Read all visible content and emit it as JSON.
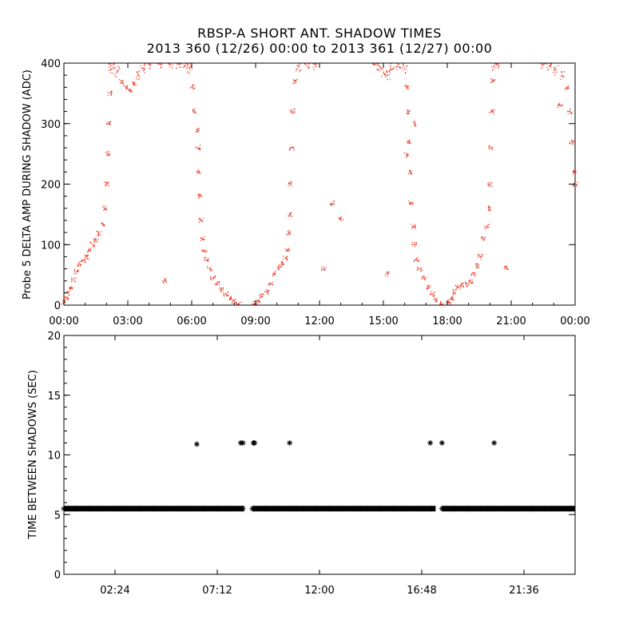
{
  "header": {
    "title": "RBSP-A SHORT ANT. SHADOW TIMES",
    "subtitle": "2013 360 (12/26) 00:00 to 2013 361 (12/27) 00:00"
  },
  "chart_data": [
    {
      "type": "scatter",
      "title": "RBSP-A SHORT ANT. SHADOW TIMES",
      "subtitle": "2013 360 (12/26) 00:00 to 2013 361 (12/27) 00:00",
      "xlabel": "",
      "ylabel": "Probe 5 DELTA AMP DURING SHADOW (ADC)",
      "xlim": [
        "00:00",
        "24:00"
      ],
      "ylim": [
        0,
        400
      ],
      "xticks": [
        "00:00",
        "03:00",
        "06:00",
        "09:00",
        "12:00",
        "15:00",
        "18:00",
        "21:00",
        "00:00"
      ],
      "yticks": [
        "0",
        "100",
        "200",
        "300",
        "400"
      ],
      "marker": "dot",
      "color": "#e8321e",
      "series": [
        {
          "values": [
            [
              0.0,
              5
            ],
            [
              0.1,
              12
            ],
            [
              0.2,
              20
            ],
            [
              0.3,
              28
            ],
            [
              0.45,
              42
            ],
            [
              0.6,
              55
            ],
            [
              0.75,
              68
            ],
            [
              0.9,
              74
            ],
            [
              1.05,
              80
            ],
            [
              1.2,
              90
            ],
            [
              1.35,
              100
            ],
            [
              1.5,
              108
            ],
            [
              1.65,
              118
            ],
            [
              1.8,
              135
            ],
            [
              1.9,
              160
            ],
            [
              2.0,
              200
            ],
            [
              2.05,
              250
            ],
            [
              2.1,
              300
            ],
            [
              2.15,
              350
            ],
            [
              2.2,
              390
            ],
            [
              2.3,
              400
            ],
            [
              2.5,
              385
            ],
            [
              2.7,
              370
            ],
            [
              2.9,
              360
            ],
            [
              3.1,
              355
            ],
            [
              3.3,
              365
            ],
            [
              3.5,
              380
            ],
            [
              3.7,
              392
            ],
            [
              4.0,
              400
            ],
            [
              4.5,
              400
            ],
            [
              5.0,
              400
            ],
            [
              5.4,
              398
            ],
            [
              5.7,
              395
            ],
            [
              5.9,
              392
            ],
            [
              6.05,
              360
            ],
            [
              6.15,
              320
            ],
            [
              6.25,
              290
            ],
            [
              6.3,
              260
            ],
            [
              6.35,
              220
            ],
            [
              6.4,
              180
            ],
            [
              6.45,
              140
            ],
            [
              6.5,
              110
            ],
            [
              6.6,
              90
            ],
            [
              6.7,
              75
            ],
            [
              6.85,
              60
            ],
            [
              7.0,
              45
            ],
            [
              7.2,
              35
            ],
            [
              7.4,
              25
            ],
            [
              7.6,
              18
            ],
            [
              7.8,
              12
            ],
            [
              8.0,
              6
            ],
            [
              8.2,
              2
            ],
            [
              8.95,
              2
            ],
            [
              9.1,
              8
            ],
            [
              9.3,
              15
            ],
            [
              9.5,
              22
            ],
            [
              9.7,
              35
            ],
            [
              9.9,
              52
            ],
            [
              10.1,
              62
            ],
            [
              10.25,
              70
            ],
            [
              10.4,
              78
            ],
            [
              10.5,
              90
            ],
            [
              10.55,
              120
            ],
            [
              10.6,
              150
            ],
            [
              10.65,
              200
            ],
            [
              10.7,
              260
            ],
            [
              10.75,
              320
            ],
            [
              10.85,
              370
            ],
            [
              11.0,
              395
            ],
            [
              11.4,
              400
            ],
            [
              11.8,
              398
            ],
            [
              14.6,
              400
            ],
            [
              14.8,
              395
            ],
            [
              15.0,
              385
            ],
            [
              15.2,
              380
            ],
            [
              15.4,
              390
            ],
            [
              15.7,
              398
            ],
            [
              16.0,
              392
            ],
            [
              16.1,
              360
            ],
            [
              16.15,
              320
            ],
            [
              16.2,
              270
            ],
            [
              16.25,
              220
            ],
            [
              16.3,
              170
            ],
            [
              16.4,
              130
            ],
            [
              16.45,
              100
            ],
            [
              16.55,
              75
            ],
            [
              16.7,
              60
            ],
            [
              16.9,
              45
            ],
            [
              17.1,
              30
            ],
            [
              17.3,
              18
            ],
            [
              17.5,
              8
            ],
            [
              17.7,
              2
            ],
            [
              18.05,
              5
            ],
            [
              18.2,
              12
            ],
            [
              18.35,
              22
            ],
            [
              18.5,
              30
            ],
            [
              18.7,
              33
            ],
            [
              18.9,
              35
            ],
            [
              19.1,
              38
            ],
            [
              19.25,
              50
            ],
            [
              19.4,
              65
            ],
            [
              19.55,
              80
            ],
            [
              19.7,
              110
            ],
            [
              19.85,
              130
            ],
            [
              19.95,
              160
            ],
            [
              20.0,
              200
            ],
            [
              20.05,
              260
            ],
            [
              20.1,
              320
            ],
            [
              20.15,
              370
            ],
            [
              20.2,
              395
            ],
            [
              20.4,
              400
            ],
            [
              22.5,
              400
            ],
            [
              22.8,
              395
            ],
            [
              23.1,
              390
            ],
            [
              23.4,
              380
            ],
            [
              23.6,
              360
            ],
            [
              23.75,
              320
            ],
            [
              23.85,
              270
            ],
            [
              23.95,
              220
            ],
            [
              24.0,
              200
            ],
            [
              4.7,
              40
            ],
            [
              12.6,
              168
            ],
            [
              13.0,
              142
            ],
            [
              15.2,
              52
            ],
            [
              16.1,
              248
            ],
            [
              16.5,
              300
            ],
            [
              20.8,
              62
            ],
            [
              23.3,
              330
            ],
            [
              12.2,
              60
            ]
          ]
        }
      ]
    },
    {
      "type": "scatter",
      "title": "",
      "xlabel": "",
      "ylabel": "TIME BETWEEN SHADOWS (SEC)",
      "xlim": [
        0,
        24
      ],
      "ylim": [
        0,
        20
      ],
      "xticks": [
        "02:24",
        "07:12",
        "12:00",
        "16:48",
        "21:36"
      ],
      "yticks": [
        "0",
        "5",
        "10",
        "15",
        "20"
      ],
      "marker": "asterisk",
      "color": "#000000",
      "series": [
        {
          "values": [
            [
              6.24,
              10.9
            ],
            [
              8.3,
              11.0
            ],
            [
              8.4,
              11.0
            ],
            [
              8.9,
              11.0
            ],
            [
              8.95,
              11.0
            ],
            [
              10.6,
              11.0
            ],
            [
              17.2,
              11.0
            ],
            [
              17.75,
              11.0
            ],
            [
              20.2,
              11.0
            ]
          ]
        },
        {
          "segments": [
            [
              0,
              8.45
            ],
            [
              8.85,
              17.45
            ],
            [
              17.75,
              24
            ]
          ],
          "value": 5.5
        }
      ]
    }
  ]
}
